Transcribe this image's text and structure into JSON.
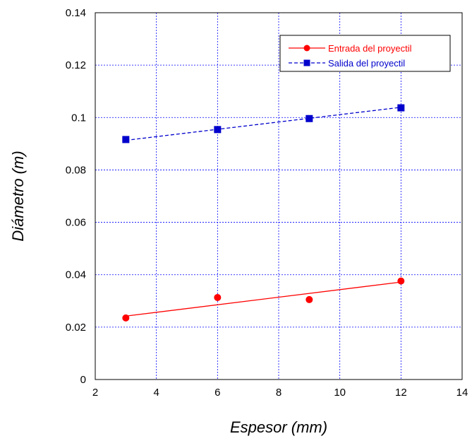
{
  "chart_data": {
    "type": "scatter",
    "xlabel": "Espesor (mm)",
    "ylabel": "Diámetro (m)",
    "xlim": [
      2,
      14
    ],
    "ylim": [
      0,
      0.14
    ],
    "xticks": [
      "2",
      "4",
      "6",
      "8",
      "10",
      "12",
      "14"
    ],
    "yticks": [
      "0",
      "0.02",
      "0.04",
      "0.06",
      "0.08",
      "0.1",
      "0.12",
      "0.14"
    ],
    "grid": true,
    "legend_position": "top-right",
    "series": [
      {
        "name": "Entrada del proyectil",
        "color": "#ff0000",
        "marker": "circle",
        "line": "solid",
        "x": [
          3,
          6,
          9,
          12
        ],
        "y": [
          0.0235,
          0.0313,
          0.0305,
          0.0376
        ],
        "fit": [
          [
            3,
            0.0242
          ],
          [
            12,
            0.0372
          ]
        ]
      },
      {
        "name": "Salida del proyectil",
        "color": "#0000cc",
        "marker": "square",
        "line": "dashed",
        "x": [
          3,
          6,
          9,
          12
        ],
        "y": [
          0.0916,
          0.0954,
          0.0996,
          0.1037
        ],
        "fit": [
          [
            3,
            0.0913
          ],
          [
            12,
            0.1039
          ]
        ]
      }
    ]
  }
}
